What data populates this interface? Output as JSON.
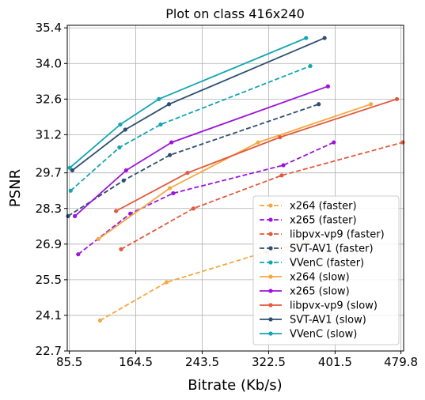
{
  "chart_data": {
    "type": "line",
    "title": "Plot on class 416x240",
    "xlabel": "Bitrate (Kb/s)",
    "ylabel": "PSNR",
    "xlim": [
      83,
      483
    ],
    "ylim": [
      22.7,
      35.5
    ],
    "xticks": [
      85.5,
      164.5,
      243.5,
      322.5,
      401.5,
      479.8
    ],
    "xtick_labels": [
      "85.5",
      "164.5",
      "243.5",
      "322.5",
      "401.5",
      "479.8"
    ],
    "yticks": [
      22.7,
      24.1,
      25.5,
      26.9,
      28.3,
      29.7,
      31.2,
      32.6,
      34.0,
      35.4
    ],
    "ytick_labels": [
      "22.7",
      "24.1",
      "25.5",
      "26.9",
      "28.3",
      "29.7",
      "31.2",
      "32.6",
      "34.0",
      "35.4"
    ],
    "grid": true,
    "legend_position": "bottom-right",
    "series": [
      {
        "name": "x264 (faster)",
        "color": "#f4a942",
        "dash": "dashed",
        "x": [
          122,
          201,
          320,
          370
        ],
        "y": [
          23.9,
          25.4,
          26.6,
          27.0
        ]
      },
      {
        "name": "x265 (faster)",
        "color": "#9b14d9",
        "dash": "dashed",
        "x": [
          96,
          158,
          209,
          340,
          400
        ],
        "y": [
          26.5,
          28.1,
          28.9,
          30.0,
          30.9
        ]
      },
      {
        "name": "libpvx-vp9 (faster)",
        "color": "#e05a3c",
        "dash": "dashed",
        "x": [
          147,
          233,
          338,
          482
        ],
        "y": [
          26.7,
          28.3,
          29.6,
          30.9
        ]
      },
      {
        "name": "SVT-AV1 (faster)",
        "color": "#2e4f70",
        "dash": "dashed",
        "x": [
          84,
          150,
          205,
          382
        ],
        "y": [
          28.0,
          29.4,
          30.4,
          32.4
        ]
      },
      {
        "name": "VVenC (faster)",
        "color": "#12a5b2",
        "dash": "dashed",
        "x": [
          87,
          145,
          194,
          372
        ],
        "y": [
          29.0,
          30.7,
          31.6,
          33.9
        ]
      },
      {
        "name": "x264 (slow)",
        "color": "#f4a942",
        "dash": "solid",
        "x": [
          120,
          205,
          310,
          444
        ],
        "y": [
          27.1,
          29.1,
          30.9,
          32.4
        ]
      },
      {
        "name": "x265 (slow)",
        "color": "#9b14d9",
        "dash": "solid",
        "x": [
          92,
          153,
          207,
          393
        ],
        "y": [
          28.0,
          29.8,
          30.9,
          33.1
        ]
      },
      {
        "name": "libpvx-vp9 (slow)",
        "color": "#e05a3c",
        "dash": "solid",
        "x": [
          141,
          226,
          336,
          475
        ],
        "y": [
          28.2,
          29.7,
          31.1,
          32.6
        ]
      },
      {
        "name": "SVT-AV1 (slow)",
        "color": "#2e4f70",
        "dash": "solid",
        "x": [
          89,
          152,
          204,
          389
        ],
        "y": [
          29.8,
          31.4,
          32.4,
          35.0
        ]
      },
      {
        "name": "VVenC (slow)",
        "color": "#12a5b2",
        "dash": "solid",
        "x": [
          86,
          146,
          192,
          367
        ],
        "y": [
          29.9,
          31.6,
          32.6,
          35.0
        ]
      }
    ]
  }
}
